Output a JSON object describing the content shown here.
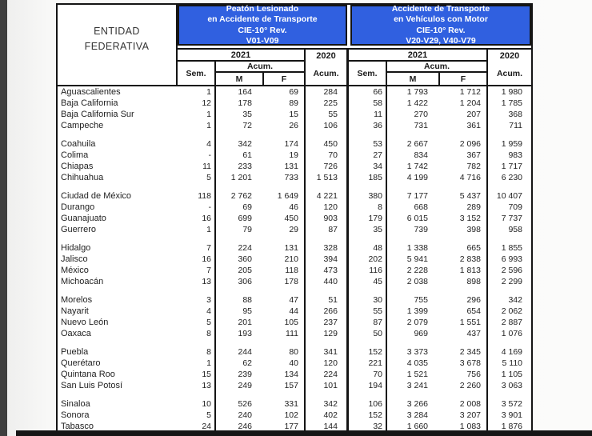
{
  "page": {
    "edge_strip_color": "#3e3e3e",
    "bottom_bar_color": "#161616",
    "accent_blue": "#3060e0"
  },
  "table": {
    "entity_header": {
      "line1": "ENTIDAD",
      "line2": "FEDERATIVA"
    },
    "sections": [
      {
        "title_lines": [
          "Peatón Lesionado",
          "en Accidente de Transporte",
          "CIE-10° Rev.",
          "V01-V09"
        ]
      },
      {
        "title_lines": [
          "Accidente de Transporte",
          "en Vehículos con Motor",
          "CIE-10° Rev.",
          "V20-V29, V40-V79"
        ]
      }
    ],
    "subheaders": {
      "year_current": "2021",
      "year_prev": "2020",
      "sem": "Sem.",
      "acum": "Acum.",
      "male": "M",
      "female": "F"
    },
    "group_breaks_after": [
      3,
      7,
      11,
      15,
      19,
      23
    ],
    "rows": [
      {
        "name": "Aguascalientes",
        "values": [
          "1",
          "164",
          "69",
          "284",
          "66",
          "1 793",
          "1 712",
          "1 980"
        ]
      },
      {
        "name": "Baja California",
        "values": [
          "12",
          "178",
          "89",
          "225",
          "58",
          "1 422",
          "1 204",
          "1 785"
        ]
      },
      {
        "name": "Baja California Sur",
        "values": [
          "1",
          "35",
          "15",
          "55",
          "11",
          "270",
          "207",
          "368"
        ]
      },
      {
        "name": "Campeche",
        "values": [
          "1",
          "72",
          "26",
          "106",
          "36",
          "731",
          "361",
          "711"
        ]
      },
      {
        "name": "Coahuila",
        "values": [
          "4",
          "342",
          "174",
          "450",
          "53",
          "2 667",
          "2 096",
          "1 959"
        ]
      },
      {
        "name": "Colima",
        "values": [
          "-",
          "61",
          "19",
          "70",
          "27",
          "834",
          "367",
          "983"
        ]
      },
      {
        "name": "Chiapas",
        "values": [
          "11",
          "233",
          "131",
          "726",
          "34",
          "1 742",
          "782",
          "1 717"
        ]
      },
      {
        "name": "Chihuahua",
        "values": [
          "5",
          "1 201",
          "733",
          "1 513",
          "185",
          "4 199",
          "4 716",
          "6 230"
        ]
      },
      {
        "name": "Ciudad de México",
        "values": [
          "118",
          "2 762",
          "1 649",
          "4 221",
          "380",
          "7 177",
          "5 437",
          "10 407"
        ]
      },
      {
        "name": "Durango",
        "values": [
          "-",
          "69",
          "46",
          "120",
          "8",
          "668",
          "289",
          "709"
        ]
      },
      {
        "name": "Guanajuato",
        "values": [
          "16",
          "699",
          "450",
          "903",
          "179",
          "6 015",
          "3 152",
          "7 737"
        ]
      },
      {
        "name": "Guerrero",
        "values": [
          "1",
          "79",
          "29",
          "87",
          "35",
          "739",
          "398",
          "958"
        ]
      },
      {
        "name": "Hidalgo",
        "values": [
          "7",
          "224",
          "131",
          "328",
          "48",
          "1 338",
          "665",
          "1 855"
        ]
      },
      {
        "name": "Jalisco",
        "values": [
          "16",
          "360",
          "210",
          "394",
          "202",
          "5 941",
          "2 838",
          "6 993"
        ]
      },
      {
        "name": "México",
        "values": [
          "7",
          "205",
          "118",
          "473",
          "116",
          "2 228",
          "1 813",
          "2 596"
        ]
      },
      {
        "name": "Michoacán",
        "values": [
          "13",
          "306",
          "178",
          "440",
          "45",
          "2 038",
          "898",
          "2 299"
        ]
      },
      {
        "name": "Morelos",
        "values": [
          "3",
          "88",
          "47",
          "51",
          "30",
          "755",
          "296",
          "342"
        ]
      },
      {
        "name": "Nayarit",
        "values": [
          "4",
          "95",
          "44",
          "266",
          "55",
          "1 399",
          "654",
          "2 062"
        ]
      },
      {
        "name": "Nuevo León",
        "values": [
          "5",
          "201",
          "105",
          "237",
          "87",
          "2 079",
          "1 551",
          "2 887"
        ]
      },
      {
        "name": "Oaxaca",
        "values": [
          "8",
          "193",
          "111",
          "129",
          "50",
          "969",
          "437",
          "1 076"
        ]
      },
      {
        "name": "Puebla",
        "values": [
          "8",
          "244",
          "80",
          "341",
          "152",
          "3 373",
          "2 345",
          "4 169"
        ]
      },
      {
        "name": "Querétaro",
        "values": [
          "1",
          "62",
          "40",
          "120",
          "221",
          "4 035",
          "3 678",
          "5 110"
        ]
      },
      {
        "name": "Quintana Roo",
        "values": [
          "15",
          "239",
          "134",
          "224",
          "70",
          "1 521",
          "756",
          "1 105"
        ]
      },
      {
        "name": "San Luis Potosí",
        "values": [
          "13",
          "249",
          "157",
          "101",
          "194",
          "3 241",
          "2 260",
          "3 063"
        ]
      },
      {
        "name": "Sinaloa",
        "values": [
          "10",
          "526",
          "331",
          "342",
          "106",
          "3 266",
          "2 008",
          "3 572"
        ]
      },
      {
        "name": "Sonora",
        "values": [
          "5",
          "240",
          "102",
          "402",
          "152",
          "3 284",
          "3 207",
          "3 901"
        ]
      },
      {
        "name": "Tabasco",
        "values": [
          "24",
          "246",
          "177",
          "144",
          "32",
          "1 660",
          "1 083",
          "1 876"
        ]
      }
    ]
  }
}
